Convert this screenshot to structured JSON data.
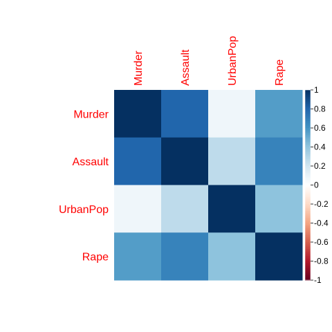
{
  "chart_data": {
    "type": "heatmap",
    "title": "",
    "variables": [
      "Murder",
      "Assault",
      "UrbanPop",
      "Rape"
    ],
    "matrix": [
      [
        1.0,
        0.8,
        0.07,
        0.56
      ],
      [
        0.8,
        1.0,
        0.26,
        0.67
      ],
      [
        0.07,
        0.26,
        1.0,
        0.41
      ],
      [
        0.56,
        0.67,
        0.41,
        1.0
      ]
    ],
    "colorbar": {
      "range": [
        -1,
        1
      ],
      "ticks": [
        "1",
        "0.8",
        "0.6",
        "0.4",
        "0.2",
        "0",
        "-0.2",
        "-0.4",
        "-0.6",
        "-0.8",
        "-1"
      ],
      "colormap": "RdBu"
    },
    "label_color": "#ff0000",
    "grid": false
  }
}
